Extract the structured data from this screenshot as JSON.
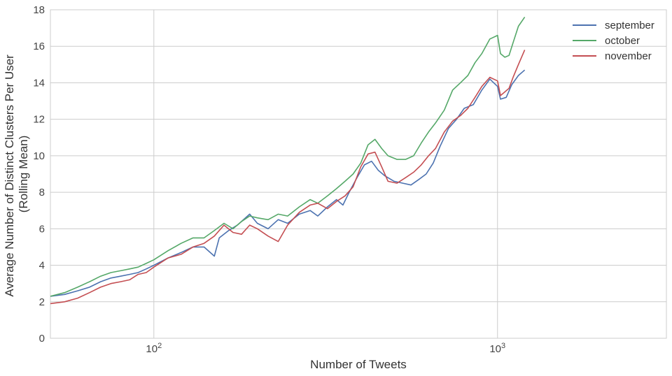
{
  "chart_data": {
    "type": "line",
    "xlabel": "Number of Tweets",
    "ylabel_lines": [
      "Average Number of Distinct Clusters Per User",
      "(Rolling Mean)"
    ],
    "xscale": "log",
    "xlim": [
      50,
      3100
    ],
    "ylim": [
      0,
      18
    ],
    "yticks": [
      0,
      2,
      4,
      6,
      8,
      10,
      12,
      14,
      16,
      18
    ],
    "xticks": [
      {
        "value": 100,
        "base": "10",
        "exp": "2"
      },
      {
        "value": 1000,
        "base": "10",
        "exp": "3"
      }
    ],
    "grid": true,
    "legend": "top-right",
    "series": [
      {
        "name": "september",
        "color": "#4c72b0",
        "points": [
          [
            50,
            2.3
          ],
          [
            55,
            2.4
          ],
          [
            60,
            2.6
          ],
          [
            65,
            2.8
          ],
          [
            70,
            3.1
          ],
          [
            75,
            3.3
          ],
          [
            80,
            3.4
          ],
          [
            85,
            3.5
          ],
          [
            90,
            3.6
          ],
          [
            95,
            3.8
          ],
          [
            100,
            4.0
          ],
          [
            110,
            4.4
          ],
          [
            120,
            4.7
          ],
          [
            130,
            5.0
          ],
          [
            140,
            5.0
          ],
          [
            150,
            4.5
          ],
          [
            155,
            5.5
          ],
          [
            165,
            5.9
          ],
          [
            175,
            6.2
          ],
          [
            190,
            6.8
          ],
          [
            200,
            6.3
          ],
          [
            215,
            6.0
          ],
          [
            230,
            6.5
          ],
          [
            245,
            6.3
          ],
          [
            265,
            6.8
          ],
          [
            285,
            7.0
          ],
          [
            300,
            6.7
          ],
          [
            320,
            7.2
          ],
          [
            340,
            7.6
          ],
          [
            355,
            7.3
          ],
          [
            370,
            8.0
          ],
          [
            390,
            8.8
          ],
          [
            410,
            9.5
          ],
          [
            430,
            9.7
          ],
          [
            450,
            9.2
          ],
          [
            470,
            8.9
          ],
          [
            500,
            8.6
          ],
          [
            530,
            8.5
          ],
          [
            560,
            8.4
          ],
          [
            590,
            8.7
          ],
          [
            620,
            9.0
          ],
          [
            650,
            9.6
          ],
          [
            680,
            10.5
          ],
          [
            720,
            11.5
          ],
          [
            760,
            12.0
          ],
          [
            800,
            12.6
          ],
          [
            850,
            12.8
          ],
          [
            900,
            13.6
          ],
          [
            950,
            14.2
          ],
          [
            1000,
            13.8
          ],
          [
            1020,
            13.1
          ],
          [
            1060,
            13.2
          ],
          [
            1100,
            13.9
          ],
          [
            1150,
            14.4
          ],
          [
            1200,
            14.7
          ]
        ]
      },
      {
        "name": "october",
        "color": "#55a868",
        "points": [
          [
            50,
            2.3
          ],
          [
            55,
            2.5
          ],
          [
            60,
            2.8
          ],
          [
            65,
            3.1
          ],
          [
            70,
            3.4
          ],
          [
            75,
            3.6
          ],
          [
            80,
            3.7
          ],
          [
            85,
            3.8
          ],
          [
            90,
            3.9
          ],
          [
            95,
            4.1
          ],
          [
            100,
            4.3
          ],
          [
            110,
            4.8
          ],
          [
            120,
            5.2
          ],
          [
            130,
            5.5
          ],
          [
            140,
            5.5
          ],
          [
            150,
            5.9
          ],
          [
            160,
            6.3
          ],
          [
            170,
            6.0
          ],
          [
            180,
            6.4
          ],
          [
            190,
            6.7
          ],
          [
            200,
            6.6
          ],
          [
            215,
            6.5
          ],
          [
            230,
            6.8
          ],
          [
            245,
            6.7
          ],
          [
            265,
            7.2
          ],
          [
            285,
            7.6
          ],
          [
            300,
            7.4
          ],
          [
            320,
            7.8
          ],
          [
            340,
            8.2
          ],
          [
            360,
            8.6
          ],
          [
            380,
            9.0
          ],
          [
            400,
            9.6
          ],
          [
            420,
            10.6
          ],
          [
            440,
            10.9
          ],
          [
            460,
            10.4
          ],
          [
            480,
            10.0
          ],
          [
            510,
            9.8
          ],
          [
            540,
            9.8
          ],
          [
            570,
            10.0
          ],
          [
            600,
            10.7
          ],
          [
            630,
            11.3
          ],
          [
            660,
            11.8
          ],
          [
            700,
            12.5
          ],
          [
            740,
            13.6
          ],
          [
            780,
            14.0
          ],
          [
            820,
            14.4
          ],
          [
            860,
            15.1
          ],
          [
            900,
            15.6
          ],
          [
            950,
            16.4
          ],
          [
            1000,
            16.6
          ],
          [
            1020,
            15.6
          ],
          [
            1050,
            15.4
          ],
          [
            1080,
            15.5
          ],
          [
            1110,
            16.2
          ],
          [
            1150,
            17.1
          ],
          [
            1200,
            17.6
          ]
        ]
      },
      {
        "name": "november",
        "color": "#c44e52",
        "points": [
          [
            50,
            1.9
          ],
          [
            55,
            2.0
          ],
          [
            60,
            2.2
          ],
          [
            65,
            2.5
          ],
          [
            70,
            2.8
          ],
          [
            75,
            3.0
          ],
          [
            80,
            3.1
          ],
          [
            85,
            3.2
          ],
          [
            90,
            3.5
          ],
          [
            95,
            3.6
          ],
          [
            100,
            3.9
          ],
          [
            110,
            4.4
          ],
          [
            120,
            4.6
          ],
          [
            130,
            5.0
          ],
          [
            140,
            5.2
          ],
          [
            150,
            5.6
          ],
          [
            160,
            6.2
          ],
          [
            170,
            5.8
          ],
          [
            180,
            5.7
          ],
          [
            190,
            6.2
          ],
          [
            200,
            6.0
          ],
          [
            215,
            5.6
          ],
          [
            230,
            5.3
          ],
          [
            245,
            6.2
          ],
          [
            265,
            6.9
          ],
          [
            285,
            7.3
          ],
          [
            300,
            7.4
          ],
          [
            320,
            7.1
          ],
          [
            340,
            7.5
          ],
          [
            360,
            7.8
          ],
          [
            380,
            8.3
          ],
          [
            400,
            9.4
          ],
          [
            420,
            10.1
          ],
          [
            440,
            10.2
          ],
          [
            460,
            9.4
          ],
          [
            480,
            8.6
          ],
          [
            510,
            8.5
          ],
          [
            540,
            8.8
          ],
          [
            570,
            9.1
          ],
          [
            600,
            9.5
          ],
          [
            630,
            10.0
          ],
          [
            660,
            10.4
          ],
          [
            700,
            11.3
          ],
          [
            740,
            11.9
          ],
          [
            780,
            12.2
          ],
          [
            820,
            12.6
          ],
          [
            860,
            13.2
          ],
          [
            900,
            13.8
          ],
          [
            950,
            14.3
          ],
          [
            1000,
            14.1
          ],
          [
            1020,
            13.3
          ],
          [
            1050,
            13.5
          ],
          [
            1080,
            13.7
          ],
          [
            1110,
            14.3
          ],
          [
            1150,
            15.0
          ],
          [
            1200,
            15.8
          ]
        ]
      }
    ]
  }
}
